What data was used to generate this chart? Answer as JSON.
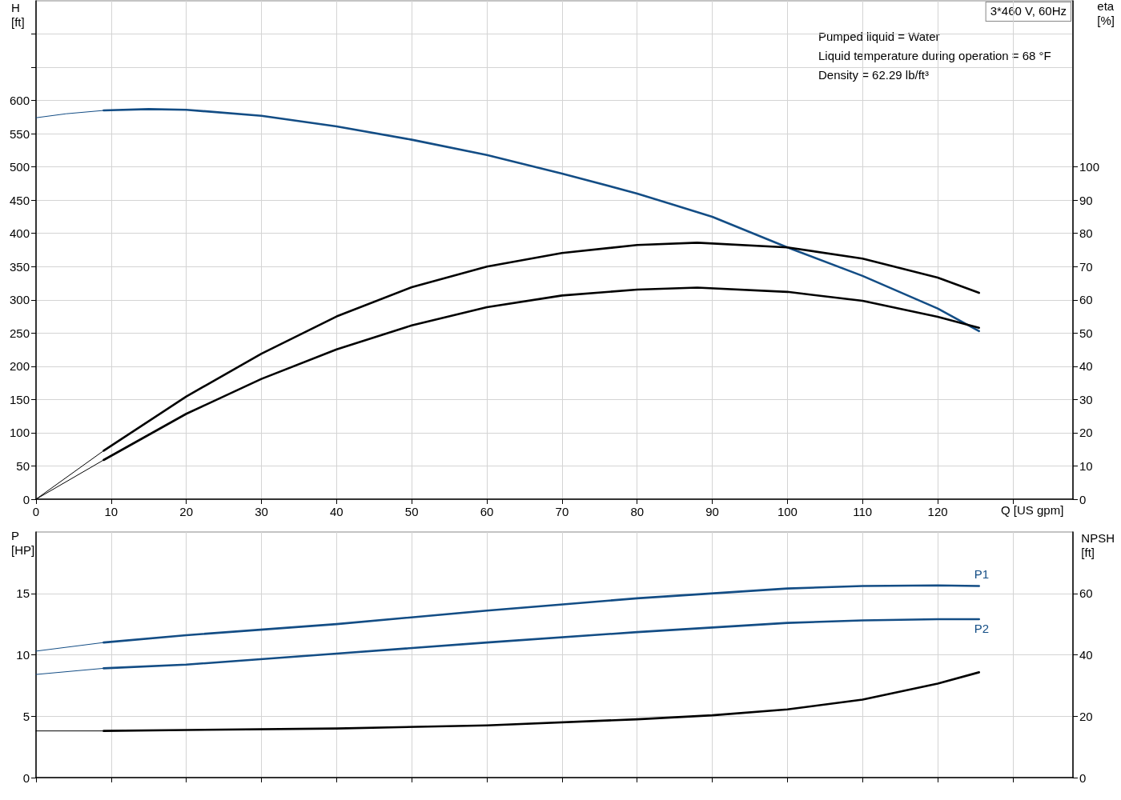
{
  "chart_data": [
    {
      "type": "line",
      "title": "3*460 V, 60Hz",
      "xlabel": "Q [US gpm]",
      "ylabel": "H\n[ft]",
      "y2label": "eta\n[%]",
      "annotations": [
        "Pumped liquid = Water",
        "Liquid temperature during operation = 68 °F",
        "Density = 62.29 lb/ft³"
      ],
      "xlim": [
        0,
        138
      ],
      "xticks": [
        0,
        10,
        20,
        30,
        40,
        50,
        60,
        70,
        80,
        90,
        100,
        110,
        120,
        {
          "value": 130,
          "label": null
        }
      ],
      "ylim": [
        0,
        750
      ],
      "yticks": [
        0,
        50,
        100,
        150,
        200,
        250,
        300,
        350,
        400,
        450,
        500,
        550,
        600,
        {
          "value": 650,
          "label": null
        },
        {
          "value": 700,
          "label": null
        }
      ],
      "y2lim": [
        0,
        150
      ],
      "y2ticks": [
        0,
        10,
        20,
        30,
        40,
        50,
        60,
        70,
        80,
        90,
        100
      ],
      "grid": true,
      "legend": false,
      "marker": "none",
      "series": [
        {
          "color": "#134d85",
          "x": [
            0,
            4,
            9
          ],
          "values": [
            574,
            580,
            585
          ]
        },
        {
          "color": "#134d85",
          "x": [
            9,
            15,
            20,
            30,
            40,
            50,
            60,
            70,
            80,
            90,
            100,
            110,
            120,
            125.5
          ],
          "values": [
            585,
            587,
            586,
            577,
            561,
            541,
            518,
            490,
            460,
            425,
            379,
            336,
            287,
            253
          ]
        },
        {
          "color": "#000000",
          "axis": "y2",
          "x": [
            0,
            9
          ],
          "values": [
            0,
            14.6
          ]
        },
        {
          "color": "#000000",
          "axis": "y2",
          "x": [
            9,
            20,
            30,
            40,
            50,
            60,
            70,
            80,
            88,
            100,
            110,
            120,
            125.5
          ],
          "values": [
            14.6,
            30.9,
            43.8,
            55.0,
            63.8,
            70.0,
            74.1,
            76.5,
            77.2,
            75.8,
            72.4,
            66.7,
            62.1
          ]
        },
        {
          "color": "#000000",
          "axis": "y2",
          "x": [
            0,
            9
          ],
          "values": [
            0,
            11.8
          ]
        },
        {
          "color": "#000000",
          "axis": "y2",
          "x": [
            9,
            20,
            30,
            40,
            50,
            60,
            70,
            80,
            88,
            100,
            110,
            120,
            125.5
          ],
          "values": [
            11.8,
            25.7,
            36.2,
            45.1,
            52.3,
            57.8,
            61.3,
            63.1,
            63.7,
            62.4,
            59.7,
            54.9,
            51.6
          ]
        }
      ]
    },
    {
      "type": "line",
      "ylabel": "P\n[HP]",
      "y2label": "NPSH\n[ft]",
      "xlim": [
        0,
        138
      ],
      "xticks": [
        0,
        10,
        20,
        30,
        40,
        50,
        60,
        70,
        80,
        90,
        100,
        110,
        120,
        130
      ],
      "ylim": [
        0,
        20
      ],
      "yticks": [
        0,
        5,
        10,
        15
      ],
      "y2lim": [
        0,
        80
      ],
      "y2ticks": [
        0,
        20,
        40,
        60
      ],
      "grid": true,
      "legend": false,
      "marker": "none",
      "tick_labels": "y",
      "series": [
        {
          "color": "#134d85",
          "x": [
            0,
            9
          ],
          "values": [
            10.3,
            11.0
          ]
        },
        {
          "name": "P1",
          "color": "#134d85",
          "x": [
            9,
            20,
            40,
            60,
            80,
            100,
            110,
            120,
            125.5
          ],
          "values": [
            11.0,
            11.6,
            12.5,
            13.6,
            14.6,
            15.4,
            15.6,
            15.65,
            15.6
          ]
        },
        {
          "color": "#134d85",
          "x": [
            0,
            9
          ],
          "values": [
            8.4,
            8.9
          ]
        },
        {
          "name": "P2",
          "color": "#134d85",
          "x": [
            9,
            20,
            40,
            60,
            80,
            100,
            110,
            120,
            125.5
          ],
          "values": [
            8.9,
            9.2,
            10.1,
            11.0,
            11.85,
            12.6,
            12.8,
            12.9,
            12.9
          ]
        },
        {
          "color": "#000000",
          "axis": "y2",
          "x": [
            0,
            9
          ],
          "values": [
            15.2,
            15.2
          ]
        },
        {
          "color": "#000000",
          "axis": "y2",
          "x": [
            9,
            20,
            40,
            60,
            80,
            90,
            100,
            110,
            120,
            125.5
          ],
          "values": [
            15.2,
            15.5,
            16.0,
            17.0,
            19.0,
            20.3,
            22.2,
            25.4,
            30.6,
            34.3
          ]
        }
      ]
    }
  ]
}
